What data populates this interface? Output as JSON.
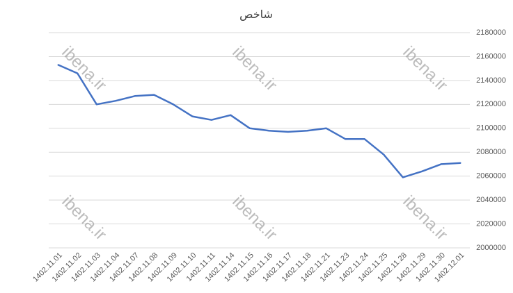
{
  "chart_data": {
    "type": "line",
    "title": "شاخص",
    "watermark": "ibena.ir",
    "categories": [
      "1402.11.01",
      "1402.11.02",
      "1402.11.03",
      "1402.11.04",
      "1402.11.07",
      "1402.11.08",
      "1402.11.09",
      "1402.11.10",
      "1402.11.11",
      "1402.11.14",
      "1402.11.15",
      "1402.11.16",
      "1402.11.17",
      "1402.11.18",
      "1402.11.21",
      "1402.11.23",
      "1402.11.24",
      "1402.11.25",
      "1402.11.28",
      "1402.11.29",
      "1402.11.30",
      "1402.12.01"
    ],
    "values": [
      2153000,
      2146000,
      2120000,
      2123000,
      2127000,
      2128000,
      2120000,
      2110000,
      2107000,
      2111000,
      2100000,
      2098000,
      2097000,
      2098000,
      2100000,
      2091000,
      2091000,
      2078000,
      2059000,
      2064000,
      2070000,
      2071000
    ],
    "color": "#4472c4",
    "ylim": [
      2000000,
      2180000
    ],
    "yticks": [
      2000000,
      2020000,
      2040000,
      2060000,
      2080000,
      2100000,
      2120000,
      2140000,
      2160000,
      2180000
    ],
    "grid": true
  }
}
